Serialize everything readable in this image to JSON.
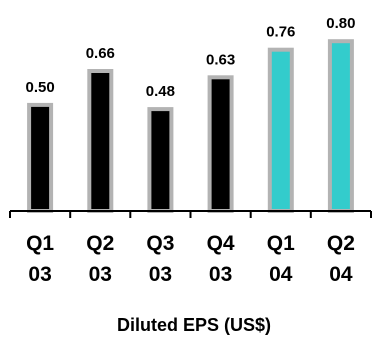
{
  "chart_data": {
    "type": "bar",
    "categories": [
      [
        "Q1",
        "03"
      ],
      [
        "Q2",
        "03"
      ],
      [
        "Q3",
        "03"
      ],
      [
        "Q4",
        "03"
      ],
      [
        "Q1",
        "04"
      ],
      [
        "Q2",
        "04"
      ]
    ],
    "values": [
      0.5,
      0.66,
      0.48,
      0.63,
      0.76,
      0.8
    ],
    "data_labels": [
      "0.50",
      "0.66",
      "0.48",
      "0.63",
      "0.76",
      "0.80"
    ],
    "xlabel": "Diluted EPS (US$)",
    "ylabel": "",
    "title": "",
    "ylim": [
      0,
      0.82
    ],
    "grid": false,
    "colors": {
      "bar_fill": [
        "#000000",
        "#000000",
        "#000000",
        "#000000",
        "#33CCCC",
        "#33CCCC"
      ],
      "bar_outline": "#B3B3B3",
      "axis": "#000000"
    }
  }
}
